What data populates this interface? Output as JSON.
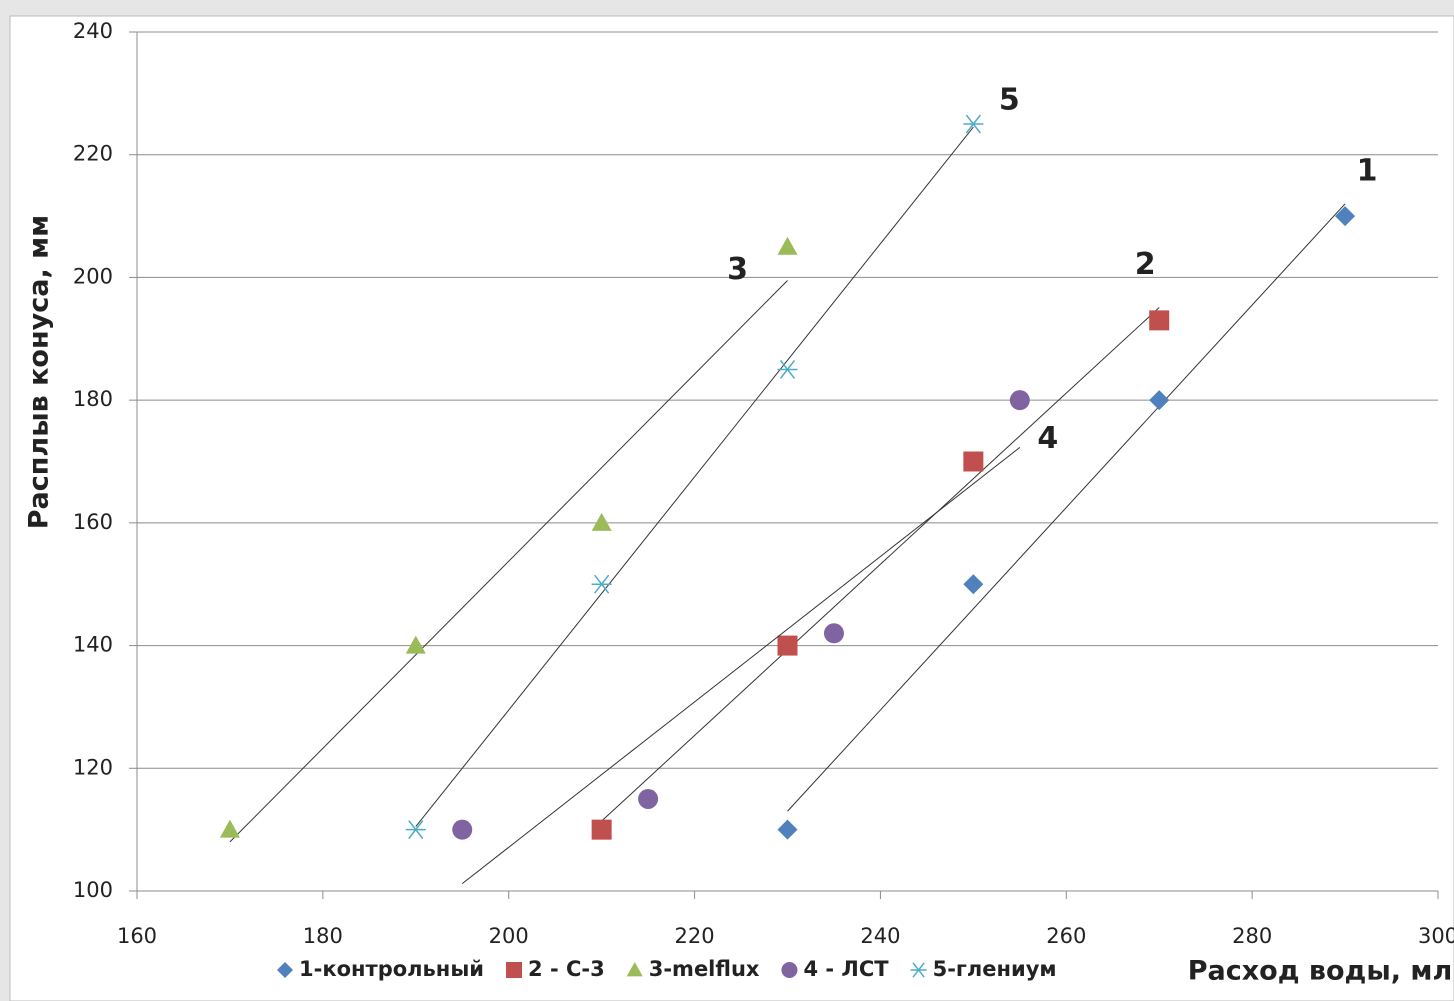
{
  "chart_data": {
    "type": "scatter",
    "x_label": "Расход воды, мл",
    "y_label": "Расплыв конуса, мм",
    "xlim": [
      160,
      300
    ],
    "xticks": [
      160,
      180,
      200,
      220,
      240,
      260,
      280,
      300
    ],
    "ylim": [
      100,
      240
    ],
    "yticks": [
      100,
      120,
      140,
      160,
      180,
      200,
      220,
      240
    ],
    "grid": true,
    "trendline": "linear",
    "legend": "bottom",
    "series": [
      {
        "name": "1-контрольный",
        "annotation": "1",
        "color": "#4f81bd",
        "marker": "diamond",
        "x": [
          230,
          250,
          270,
          290
        ],
        "values": [
          110,
          150,
          180,
          210
        ]
      },
      {
        "name": "2 - С-3",
        "annotation": "2",
        "color": "#c0504d",
        "marker": "square",
        "x": [
          210,
          230,
          250,
          270
        ],
        "values": [
          110,
          140,
          170,
          193
        ]
      },
      {
        "name": "3-melflux",
        "annotation": "3",
        "color": "#9bbb59",
        "marker": "triangle",
        "x": [
          170,
          190,
          210,
          230
        ],
        "values": [
          110,
          140,
          160,
          205
        ]
      },
      {
        "name": "4 - ЛСТ",
        "annotation": "4",
        "color": "#8064a2",
        "marker": "circle",
        "x": [
          195,
          215,
          235,
          255
        ],
        "values": [
          110,
          115,
          142,
          180
        ]
      },
      {
        "name": "5-глениум",
        "annotation": "5",
        "color": "#4bacc6",
        "marker": "star",
        "x": [
          190,
          210,
          230,
          250
        ],
        "values": [
          110,
          150,
          185,
          225
        ]
      }
    ]
  }
}
